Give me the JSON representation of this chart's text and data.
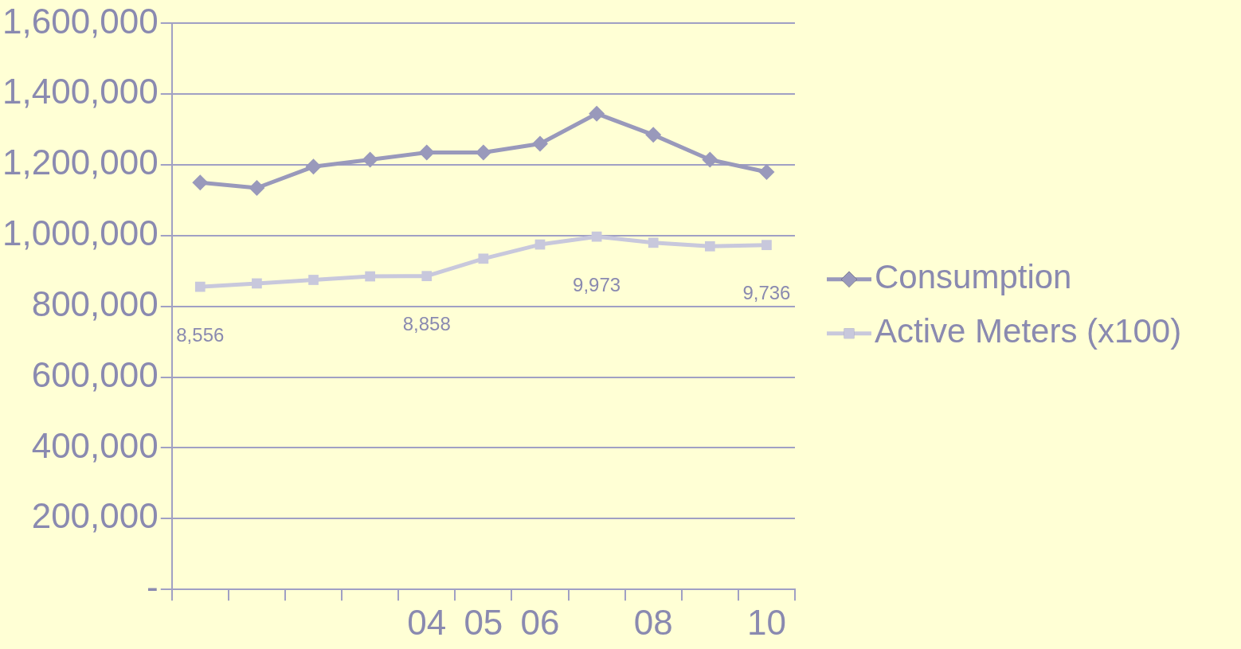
{
  "chart_data": {
    "type": "line",
    "categories": [
      null,
      null,
      null,
      null,
      "04",
      "05",
      "06",
      null,
      "08",
      null,
      "10"
    ],
    "series": [
      {
        "name": "Consumption",
        "color": "#9999bb",
        "marker": "diamond",
        "values": [
          1150000,
          1135000,
          1195000,
          1215000,
          1235000,
          1235000,
          1260000,
          1345000,
          1285000,
          1215000,
          1180000
        ]
      },
      {
        "name": "Active Meters (x100)",
        "color": "#c8c8dc",
        "marker": "square",
        "values": [
          855600,
          865000,
          875000,
          885000,
          885800,
          935000,
          975000,
          997300,
          980000,
          970000,
          973600
        ]
      }
    ],
    "ylim": [
      0,
      1600000
    ],
    "yticks": [
      {
        "value": 0,
        "label": "-"
      },
      {
        "value": 200000,
        "label": "200,000"
      },
      {
        "value": 400000,
        "label": "400,000"
      },
      {
        "value": 600000,
        "label": "600,000"
      },
      {
        "value": 800000,
        "label": "800,000"
      },
      {
        "value": 1000000,
        "label": "1,000,000"
      },
      {
        "value": 1200000,
        "label": "1,200,000"
      },
      {
        "value": 1400000,
        "label": "1,400,000"
      },
      {
        "value": 1600000,
        "label": "1,600,000"
      }
    ],
    "annotations": [
      {
        "text": "8,556",
        "y": 855600
      },
      {
        "text": "8,858",
        "x": "04",
        "y": 885800
      },
      {
        "text": "9,973",
        "y": 997300
      },
      {
        "text": "9,736",
        "x": "10",
        "y": 973600
      }
    ],
    "grid": "y",
    "legend": "right",
    "line_style": "solid"
  }
}
